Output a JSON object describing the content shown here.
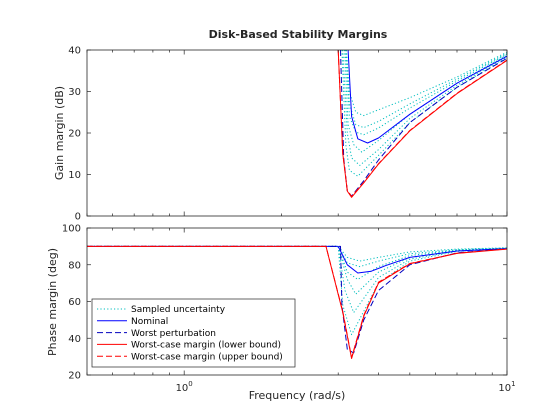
{
  "chart_data": [
    {
      "type": "line",
      "title": "Disk-Based Stability Margins",
      "xlabel": "",
      "ylabel": "Gain margin (dB)",
      "xscale": "log",
      "xlim": [
        0.5,
        10
      ],
      "ylim": [
        0,
        40
      ],
      "yticks": [
        0,
        10,
        20,
        30,
        40
      ],
      "grid": false,
      "series": [
        {
          "style": "sampled",
          "color": "#00bfbf",
          "dash": "dotted",
          "x": [
            3.18,
            3.25,
            3.4,
            3.6,
            4.0,
            5.0,
            7.0,
            10.0
          ],
          "y": [
            40,
            30,
            25,
            24.2,
            25.6,
            28.5,
            33.5,
            39.5
          ]
        },
        {
          "style": "sampled",
          "color": "#00bfbf",
          "dash": "dotted",
          "x": [
            3.18,
            3.25,
            3.4,
            3.6,
            4.0,
            5.0,
            7.0,
            10.0
          ],
          "y": [
            40,
            27,
            22,
            21.3,
            22.8,
            27.0,
            33.0,
            39.2
          ]
        },
        {
          "style": "sampled",
          "color": "#00bfbf",
          "dash": "dotted",
          "x": [
            3.16,
            3.25,
            3.4,
            3.6,
            4.0,
            5.0,
            7.0,
            10.0
          ],
          "y": [
            40,
            24,
            20.2,
            19.6,
            21.2,
            26.0,
            32.5,
            39.0
          ]
        },
        {
          "style": "sampled",
          "color": "#00bfbf",
          "dash": "dotted",
          "x": [
            3.14,
            3.22,
            3.35,
            3.55,
            4.0,
            5.0,
            7.0,
            10.0
          ],
          "y": [
            40,
            22,
            17.2,
            15.4,
            18.2,
            24.5,
            32.0,
            38.8
          ]
        },
        {
          "style": "sampled",
          "color": "#00bfbf",
          "dash": "dotted",
          "x": [
            3.1,
            3.2,
            3.3,
            3.5,
            4.0,
            5.0,
            7.0,
            10.0
          ],
          "y": [
            40,
            20,
            14,
            12.2,
            16.0,
            23.5,
            31.5,
            38.5
          ]
        },
        {
          "style": "sampled",
          "color": "#00bfbf",
          "dash": "dotted",
          "x": [
            3.08,
            3.17,
            3.25,
            3.45,
            4.0,
            5.0,
            7.0,
            10.0
          ],
          "y": [
            40,
            17,
            11,
            9.6,
            14.6,
            22.5,
            31.0,
            38.3
          ]
        },
        {
          "style": "nominal",
          "color": "#0000ff",
          "dash": "solid",
          "x": [
            3.22,
            3.3,
            3.45,
            3.7,
            4.0,
            5.0,
            7.0,
            10.0
          ],
          "y": [
            40,
            24,
            18.6,
            17.6,
            18.8,
            24.5,
            32.0,
            38.5
          ]
        },
        {
          "style": "worst-perturbation",
          "color": "#0000bf",
          "dash": "dashed",
          "x": [
            3.05,
            3.12,
            3.2,
            3.3,
            3.6,
            4.0,
            5.0,
            7.0,
            10.0
          ],
          "y": [
            40,
            14,
            6,
            4.8,
            8.5,
            13.5,
            22.5,
            31.0,
            38.0
          ]
        },
        {
          "style": "lower-bound",
          "color": "#ff0000",
          "dash": "solid",
          "x": [
            3.0,
            3.1,
            3.2,
            3.3,
            3.6,
            4.0,
            5.0,
            7.0,
            10.0
          ],
          "y": [
            40,
            15,
            6,
            4.5,
            8.0,
            12.5,
            20.5,
            29.5,
            37.5
          ]
        },
        {
          "style": "upper-bound",
          "color": "#ff0000",
          "dash": "dashed",
          "x": [
            3.0,
            3.1,
            3.2,
            3.3,
            3.6,
            4.0,
            5.0,
            7.0,
            10.0
          ],
          "y": [
            40,
            15,
            6.2,
            4.7,
            8.1,
            12.6,
            20.6,
            29.6,
            37.6
          ]
        }
      ]
    },
    {
      "type": "line",
      "title": "",
      "xlabel": "Frequency (rad/s)",
      "ylabel": "Phase margin (deg)",
      "xscale": "log",
      "xlim": [
        0.5,
        10
      ],
      "ylim": [
        20,
        100
      ],
      "yticks": [
        20,
        40,
        60,
        80,
        100
      ],
      "xticks": [
        {
          "value": 1,
          "base": "10",
          "exp": "0"
        },
        {
          "value": 10,
          "base": "10",
          "exp": "1"
        }
      ],
      "grid": false,
      "legend": {
        "position": "bottom-left",
        "entries": [
          {
            "label": "Sampled uncertainty",
            "color": "#00bfbf",
            "dash": "dotted"
          },
          {
            "label": "Nominal",
            "color": "#0000ff",
            "dash": "solid"
          },
          {
            "label": "Worst perturbation",
            "color": "#0000bf",
            "dash": "dashed"
          },
          {
            "label": "Worst-case margin (lower bound)",
            "color": "#ff0000",
            "dash": "solid"
          },
          {
            "label": "Worst-case margin (upper bound)",
            "color": "#ff0000",
            "dash": "dashed"
          }
        ]
      },
      "series": [
        {
          "style": "sampled",
          "color": "#00bfbf",
          "dash": "dotted",
          "x": [
            0.5,
            3.0,
            3.2,
            3.5,
            4.0,
            5.0,
            7.0,
            10.0
          ],
          "y": [
            90,
            90,
            84,
            82,
            84,
            87,
            88.5,
            89.2
          ]
        },
        {
          "style": "sampled",
          "color": "#00bfbf",
          "dash": "dotted",
          "x": [
            0.5,
            3.0,
            3.2,
            3.5,
            4.0,
            5.0,
            7.0,
            10.0
          ],
          "y": [
            90,
            90,
            81,
            79,
            82,
            86,
            88.2,
            89.1
          ]
        },
        {
          "style": "sampled",
          "color": "#00bfbf",
          "dash": "dotted",
          "x": [
            0.5,
            3.0,
            3.2,
            3.45,
            4.0,
            5.0,
            7.0,
            10.0
          ],
          "y": [
            90,
            90,
            76,
            72,
            79,
            85,
            88,
            89
          ]
        },
        {
          "style": "sampled",
          "color": "#00bfbf",
          "dash": "dotted",
          "x": [
            0.5,
            3.0,
            3.2,
            3.4,
            4.0,
            5.0,
            7.0,
            10.0
          ],
          "y": [
            90,
            90,
            72,
            64,
            76,
            84,
            87.8,
            89
          ]
        },
        {
          "style": "sampled",
          "color": "#00bfbf",
          "dash": "dotted",
          "x": [
            0.5,
            3.0,
            3.15,
            3.35,
            4.0,
            5.0,
            7.0,
            10.0
          ],
          "y": [
            90,
            90,
            66,
            54,
            73,
            83,
            87.5,
            88.9
          ]
        },
        {
          "style": "sampled",
          "color": "#00bfbf",
          "dash": "dotted",
          "x": [
            0.5,
            3.0,
            3.1,
            3.3,
            4.0,
            5.0,
            7.0,
            10.0
          ],
          "y": [
            90,
            90,
            58,
            42,
            70,
            82,
            87.3,
            88.8
          ]
        },
        {
          "style": "nominal",
          "color": "#0000ff",
          "dash": "solid",
          "x": [
            0.5,
            3.0,
            3.2,
            3.45,
            3.8,
            4.2,
            5.0,
            7.0,
            10.0
          ],
          "y": [
            90,
            90,
            80,
            75.5,
            76.5,
            79.5,
            84,
            87.5,
            88.8
          ]
        },
        {
          "style": "worst-perturbation",
          "color": "#0000bf",
          "dash": "dashed",
          "x": [
            0.5,
            3.05,
            3.08,
            3.2,
            3.35,
            3.6,
            4.0,
            5.0,
            7.0,
            10.0
          ],
          "y": [
            90,
            90,
            58,
            34,
            32,
            50,
            66,
            80,
            86.5,
            88.6
          ]
        },
        {
          "style": "lower-bound",
          "color": "#ff0000",
          "dash": "solid",
          "x": [
            0.5,
            2.75,
            3.1,
            3.3,
            3.6,
            4.0,
            5.0,
            7.0,
            10.0
          ],
          "y": [
            90,
            90,
            54,
            29,
            52,
            70,
            80.5,
            86.2,
            88.5
          ]
        },
        {
          "style": "upper-bound",
          "color": "#ff0000",
          "dash": "dashed",
          "x": [
            0.5,
            2.75,
            3.1,
            3.3,
            3.6,
            4.0,
            5.0,
            7.0,
            10.0
          ],
          "y": [
            90,
            90,
            54.5,
            29.5,
            52.5,
            70.5,
            80.7,
            86.3,
            88.6
          ]
        }
      ]
    }
  ]
}
